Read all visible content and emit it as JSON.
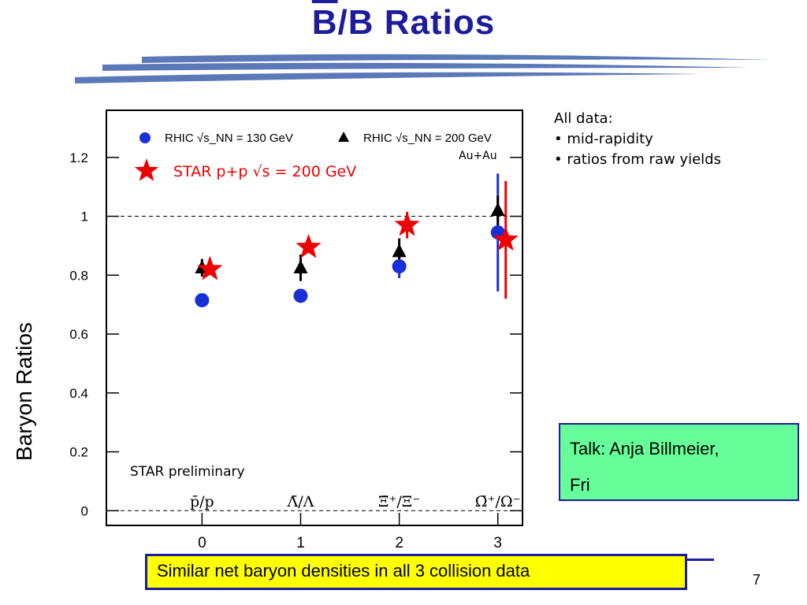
{
  "slide": {
    "title_bar": "B",
    "title_rest": "/B  Ratios",
    "notes": [
      "All data:",
      "• mid-rapidity",
      "• ratios from raw yields"
    ],
    "talk_box": [
      "Talk: Anja Billmeier,",
      "Fri"
    ],
    "summary": "Similar net baryon densities in all 3 collision data",
    "page_number": "7"
  },
  "chart_data": {
    "type": "scatter",
    "ylabel": "Baryon Ratios",
    "ylim": [
      -0.05,
      1.36
    ],
    "yticks": [
      "0",
      "0.2",
      "0.4",
      "0.6",
      "0.8",
      "1",
      "1.2"
    ],
    "ytick_values": [
      0,
      0.2,
      0.4,
      0.6,
      0.8,
      1.0,
      1.2
    ],
    "xlim": [
      -0.97,
      3.25
    ],
    "x": [
      0,
      1,
      2,
      3
    ],
    "xticks": [
      "0",
      "1",
      "2",
      "3"
    ],
    "categories": [
      "p̄/p",
      "Λ̄/Λ",
      "Ξ̄⁺/Ξ⁻",
      "Ω̄⁺/Ω⁻"
    ],
    "reference_line": 1.0,
    "annotations": {
      "preliminary": "STAR preliminary",
      "system": "Au+Au"
    },
    "series": [
      {
        "name": "RHIC √s_NN = 130 GeV",
        "marker": "circle",
        "color": "#1a2fd6",
        "values": [
          0.715,
          0.73,
          0.83,
          0.945
        ],
        "errors": [
          0.01,
          0.015,
          0.04,
          0.2
        ]
      },
      {
        "name": "RHIC √s_NN = 200 GeV",
        "marker": "triangle",
        "color": "#000000",
        "values": [
          0.825,
          0.825,
          0.88,
          1.02
        ],
        "errors": [
          0.03,
          0.045,
          0.045,
          0.05
        ]
      },
      {
        "name": "STAR p+p √s = 200 GeV",
        "marker": "star",
        "color": "#ee0000",
        "values": [
          0.82,
          0.895,
          0.97,
          0.92
        ],
        "errors": [
          0.01,
          0.01,
          0.045,
          0.2
        ]
      }
    ]
  }
}
